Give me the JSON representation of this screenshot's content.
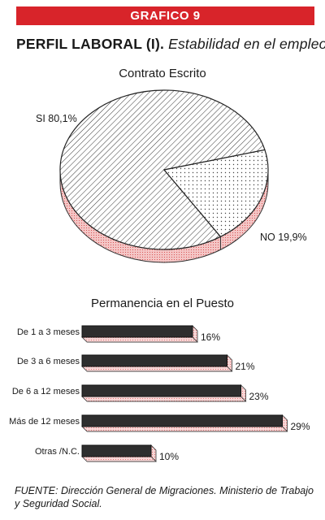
{
  "header": {
    "banner": "GRAFICO 9",
    "title_bold": "PERFIL LABORAL (I).",
    "title_italic": "Estabilidad en el empleo"
  },
  "chart_data": [
    {
      "type": "pie",
      "title": "Contrato Escrito",
      "slices": [
        {
          "label": "SI 80,1%",
          "value": 80.1
        },
        {
          "label": "NO 19,9%",
          "value": 19.9
        }
      ]
    },
    {
      "type": "bar",
      "orientation": "horizontal",
      "title": "Permanencia en el Puesto",
      "categories": [
        "De 1 a 3 meses",
        "De 3 a 6 meses",
        "De 6 a 12 meses",
        "Más de 12 meses",
        "Otras /N.C."
      ],
      "values": [
        16,
        21,
        23,
        29,
        10
      ],
      "value_labels": [
        "16%",
        "21%",
        "23%",
        "29%",
        "10%"
      ]
    }
  ],
  "source_text": "FUENTE: Dirección General de Migraciones. Ministerio de Trabajo y Seguridad Social."
}
